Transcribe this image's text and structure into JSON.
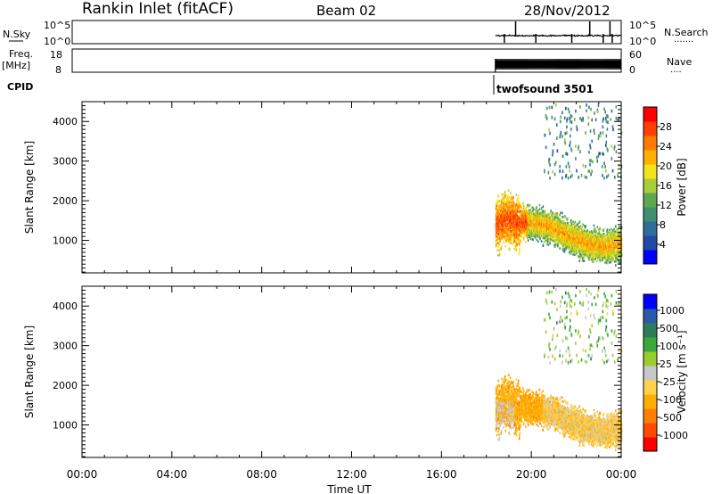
{
  "header": {
    "station": "Rankin Inlet (fitACF)",
    "beam": "Beam 02",
    "date": "28/Nov/2012"
  },
  "small_panels": {
    "nsky_label": "N.Sky",
    "nsky_ticks": [
      "10^5",
      "10^0"
    ],
    "nsearch_label": "N.Search",
    "nsearch_dots": "·······",
    "nsearch_ticks": [
      "10^5",
      "10^0"
    ],
    "freq_label": "Freq.",
    "freq_unit": "[MHz]",
    "freq_ticks": [
      "18",
      "8"
    ],
    "nave_label": "Nave",
    "nave_dots": "····",
    "nave_ticks": [
      "60",
      "0"
    ],
    "cpid_label": "CPID",
    "cpid_value": "twofsound 3501"
  },
  "colors": {
    "power_scale": [
      "#0000ff",
      "#1f4aa8",
      "#2f6e9a",
      "#3f8f6f",
      "#5fa84f",
      "#a8cc3a",
      "#f2e31a",
      "#ffb000",
      "#ff7a00",
      "#ff4000",
      "#ff0000"
    ],
    "velocity_scale": [
      "#ff0000",
      "#ff4a00",
      "#ff7f00",
      "#ffae00",
      "#ffd24d",
      "#c8c8c8",
      "#9acd32",
      "#3aa83a",
      "#2e7d5a",
      "#2a5aa8",
      "#0000ff"
    ]
  },
  "chart_data": [
    {
      "type": "heatmap",
      "name": "power",
      "ylabel": "Slant Range [km]",
      "xlabel": "Time UT",
      "x_ticks": [
        "00:00",
        "04:00",
        "08:00",
        "12:00",
        "16:00",
        "20:00",
        "00:00"
      ],
      "y_ticks": [
        "1000",
        "2000",
        "3000",
        "4000"
      ],
      "ylim": [
        180,
        4500
      ],
      "xlim": [
        0,
        24
      ],
      "colorbar_label": "Power [dB]",
      "colorbar_ticks": [
        "4",
        "8",
        "12",
        "16",
        "20",
        "24",
        "28"
      ],
      "colorbar_range": [
        0,
        32
      ],
      "data_time_range": [
        18.4,
        24
      ],
      "cpid": "twofsound 3501",
      "scatter_main_band": [
        500,
        2600
      ],
      "scatter_upper": [
        2500,
        4450
      ]
    },
    {
      "type": "heatmap",
      "name": "velocity",
      "ylabel": "Slant Range [km]",
      "xlabel": "Time UT",
      "x_ticks": [
        "00:00",
        "04:00",
        "08:00",
        "12:00",
        "16:00",
        "20:00",
        "00:00"
      ],
      "y_ticks": [
        "1000",
        "2000",
        "3000",
        "4000"
      ],
      "ylim": [
        180,
        4500
      ],
      "xlim": [
        0,
        24
      ],
      "colorbar_label": "Velocity [m s⁻¹]",
      "colorbar_ticks": [
        "1000",
        "500",
        "100",
        "25",
        "-25",
        "-100",
        "-500",
        "-1000"
      ],
      "data_time_range": [
        18.4,
        24
      ]
    }
  ]
}
